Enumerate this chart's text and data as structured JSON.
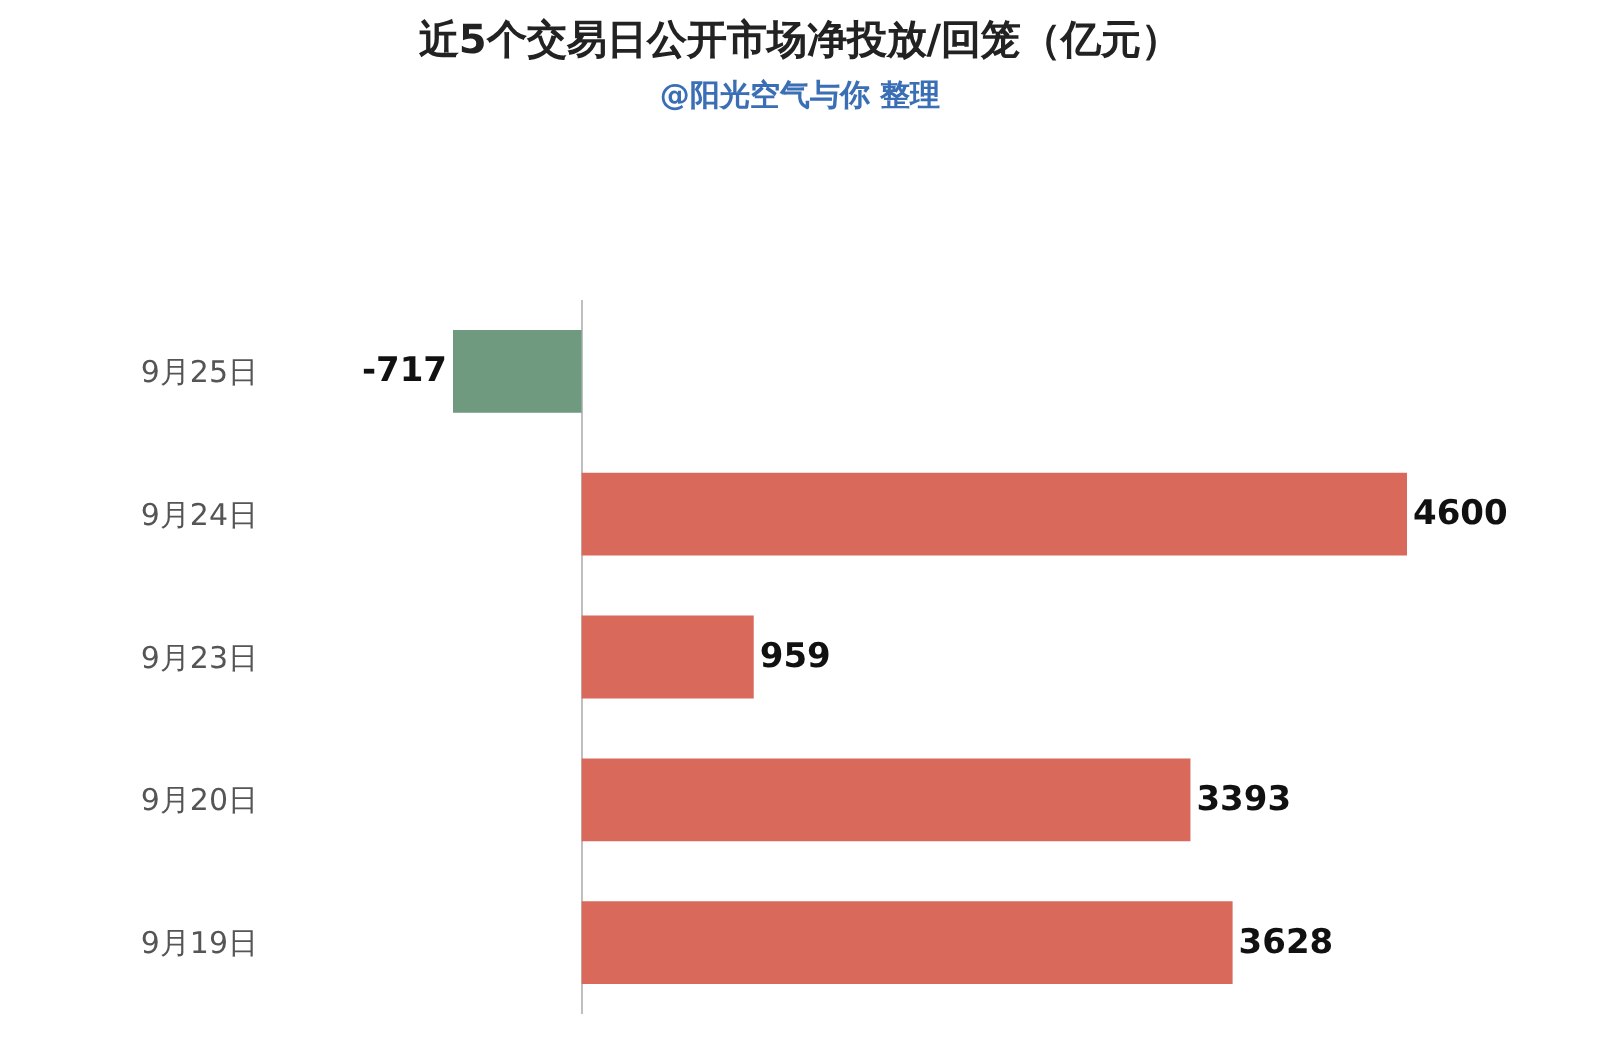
{
  "chart_data": {
    "type": "bar",
    "orientation": "horizontal",
    "title": "近5个交易日公开市场净投放/回笼（亿元）",
    "subtitle": "@阳光空气与你 整理",
    "categories": [
      "9月25日",
      "9月24日",
      "9月23日",
      "9月20日",
      "9月19日"
    ],
    "values": [
      -717,
      4600,
      959,
      3393,
      3628
    ],
    "colors": [
      "#6f9a7f",
      "#d9695b",
      "#d9695b",
      "#d9695b",
      "#d9695b"
    ],
    "data_labels": true
  }
}
